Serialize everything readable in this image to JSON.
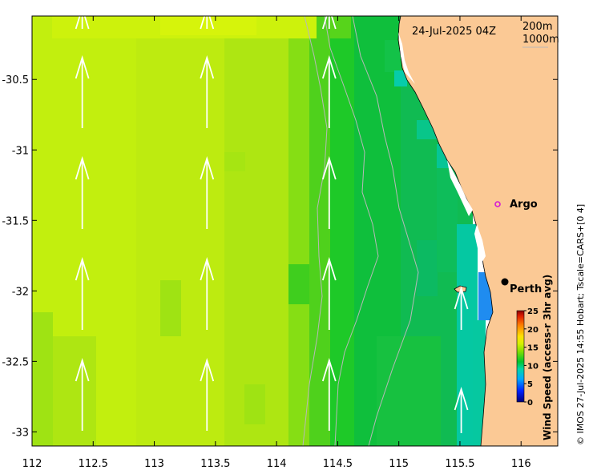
{
  "map": {
    "date": "24-Jul-2025 04Z",
    "contours": [
      "200m",
      "1000m"
    ],
    "x_ticks": [
      "112",
      "112.5",
      "113",
      "113.5",
      "114",
      "114.5",
      "115",
      "115.5",
      "116"
    ],
    "y_ticks": [
      "-30.5",
      "-31",
      "-31.5",
      "-32",
      "-32.5",
      "-33"
    ],
    "lon_range": [
      112,
      116.3
    ],
    "lat_range": [
      -33.1,
      -30.05
    ],
    "places": [
      {
        "name": "Argo",
        "lon": 115.8,
        "lat": -31.45,
        "marker": "ring",
        "color": "#d41bd4"
      },
      {
        "name": "Perth",
        "lon": 115.86,
        "lat": -31.95,
        "marker": "dot",
        "color": "#000000"
      }
    ],
    "colorbar": {
      "label": "Wind Speed (access-r 3hr avg)",
      "ticks": [
        "0",
        "5",
        "10",
        "15",
        "20",
        "25"
      ],
      "range": [
        0,
        25
      ]
    },
    "credit": "© IMOS 27-Jul-2025 14:55 Hobart; Tscale=CARS+[0 4]",
    "colors": {
      "land": "#fbc995",
      "coast_white": "#ffffff",
      "arrow": "#ffffff",
      "contour": "#b8b8b8"
    }
  }
}
